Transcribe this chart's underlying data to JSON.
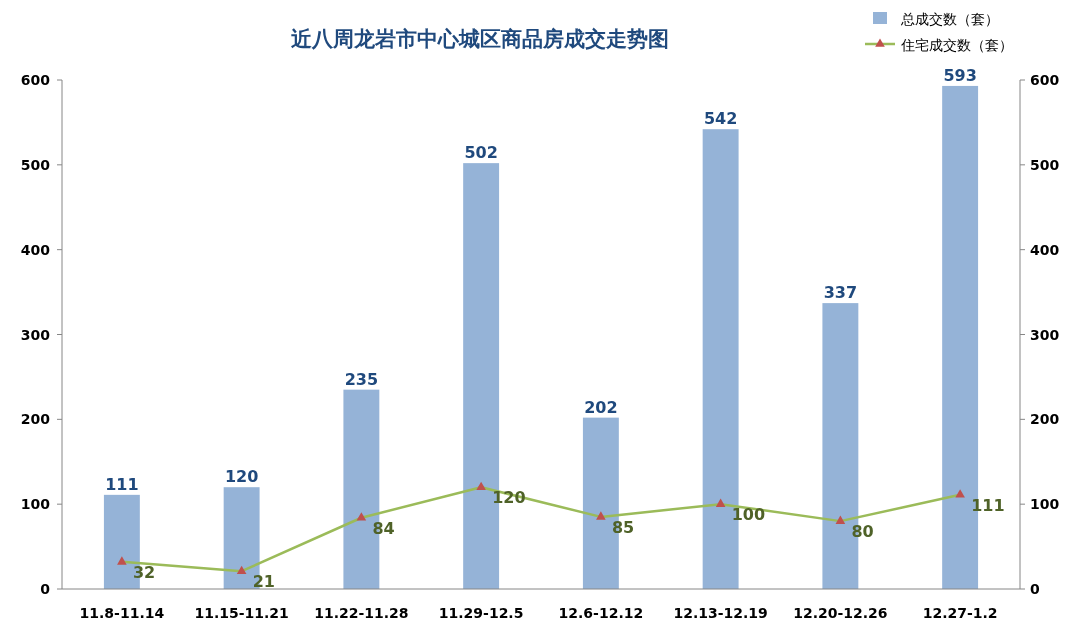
{
  "chart_data": {
    "type": "bar",
    "title": "近八周龙岩市中心城区商品房成交走势图",
    "categories": [
      "11.8-11.14",
      "11.15-11.21",
      "11.22-11.28",
      "11.29-12.5",
      "12.6-12.12",
      "12.13-12.19",
      "12.20-12.26",
      "12.27-1.2"
    ],
    "series": [
      {
        "name": "总成交数（套）",
        "color": "#95b3d7",
        "values": [
          111,
          120,
          235,
          502,
          202,
          542,
          337,
          593
        ]
      },
      {
        "name": "住宅成交数（套）",
        "type": "line",
        "axis": "y2",
        "color": "#9bbb59",
        "marker": "triangle",
        "values": [
          32,
          21,
          84,
          120,
          85,
          100,
          80,
          111
        ]
      }
    ],
    "ylim": [
      0,
      600
    ],
    "yticks": [
      0,
      100,
      200,
      300,
      400,
      500,
      600
    ],
    "y2lim": [
      0,
      600
    ],
    "y2ticks": [
      0,
      100,
      200,
      300,
      400,
      500,
      600
    ],
    "data_labels": true,
    "grid": false,
    "legend": "top right"
  }
}
